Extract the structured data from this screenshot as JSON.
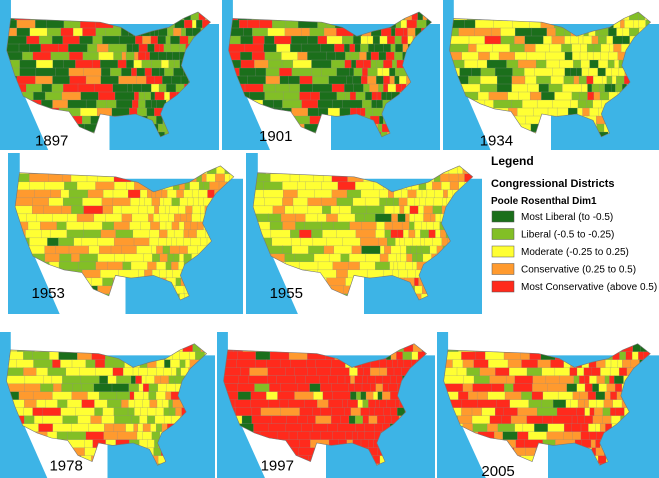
{
  "maps": [
    {
      "label": "1897"
    },
    {
      "label": "1901"
    },
    {
      "label": "1934"
    },
    {
      "label": "1953"
    },
    {
      "label": "1955"
    },
    {
      "label": "1978"
    },
    {
      "label": "1997"
    },
    {
      "label": "2005"
    }
  ],
  "legend": {
    "title": "Legend",
    "heading": "Congressional Districts",
    "subheading": "Poole Rosenthal Dim1",
    "items": [
      {
        "label": "Most Liberal (to -0.5)",
        "color": "#1b6f1b"
      },
      {
        "label": "Liberal (-0.5 to -0.25)",
        "color": "#82bf26"
      },
      {
        "label": "Moderate (-0.25 to 0.25)",
        "color": "#ffff33"
      },
      {
        "label": "Conservative (0.25 to 0.5)",
        "color": "#ff9a2e"
      },
      {
        "label": "Most Conservative (above 0.5)",
        "color": "#ff2a1c"
      }
    ]
  }
}
